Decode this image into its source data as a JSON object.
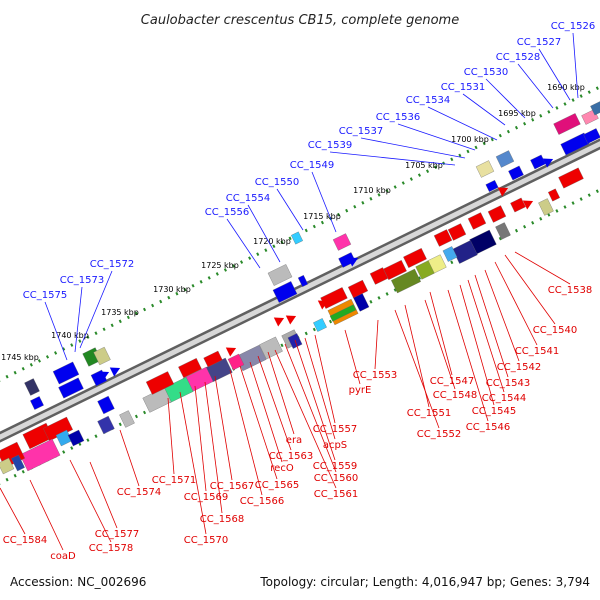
{
  "title": "Caulobacter crescentus CB15, complete genome",
  "footer": {
    "accession": "Accession: NC_002696",
    "summary": "Topology: circular; Length: 4,016,947 bp; Genes: 3,794"
  },
  "colors": {
    "backbone": "#8a8a8a",
    "tick": "#2a8a2a",
    "blue_label": "#1a1aff",
    "red_label": "#e00000"
  },
  "ticks": [
    "1690 kbp",
    "1695 kbp",
    "1700 kbp",
    "1705 kbp",
    "1710 kbp",
    "1715 kbp",
    "1720 kbp",
    "1725 kbp",
    "1730 kbp",
    "1735 kbp",
    "1740 kbp",
    "1745 kbp"
  ],
  "blue_labels": [
    "CC_1526",
    "CC_1527",
    "CC_1528",
    "CC_1530",
    "CC_1531",
    "CC_1534",
    "CC_1536",
    "CC_1537",
    "CC_1539",
    "CC_1549",
    "CC_1550",
    "CC_1554",
    "CC_1556",
    "CC_1572",
    "CC_1573",
    "CC_1575"
  ],
  "red_labels": [
    "CC_1538",
    "CC_1540",
    "CC_1541",
    "CC_1542",
    "CC_1543",
    "CC_1544",
    "CC_1545",
    "CC_1546",
    "CC_1547",
    "CC_1548",
    "CC_1551",
    "CC_1552",
    "CC_1553",
    "pyrE",
    "CC_1557",
    "acpS",
    "CC_1559",
    "CC_1560",
    "CC_1561",
    "era",
    "CC_1563",
    "recO",
    "CC_1565",
    "CC_1566",
    "CC_1567",
    "CC_1568",
    "CC_1569",
    "CC_1570",
    "CC_1571",
    "CC_1574",
    "CC_1577",
    "CC_1578",
    "coaD",
    "CC_1584"
  ]
}
